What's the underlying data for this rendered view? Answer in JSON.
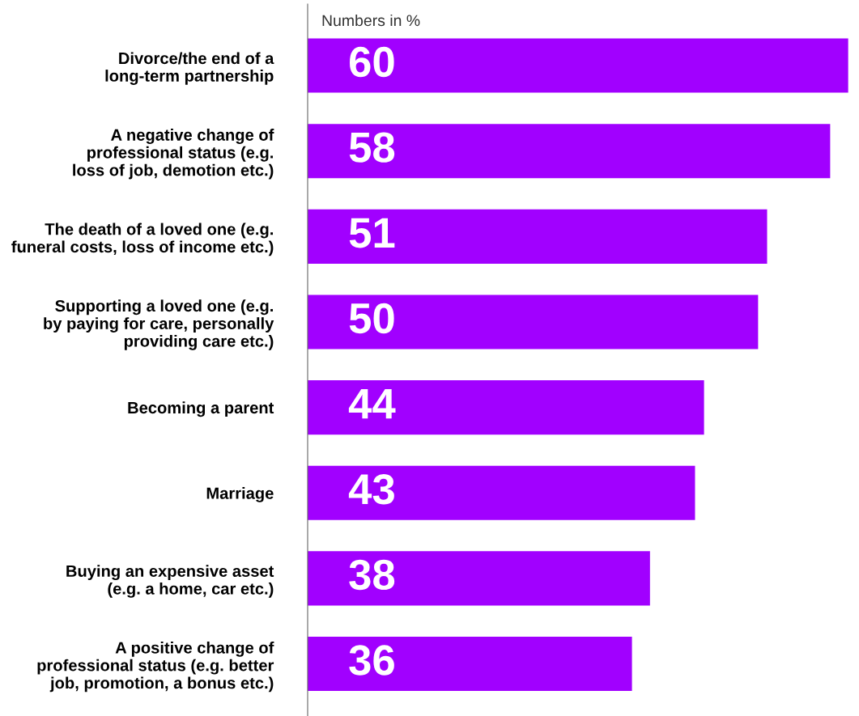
{
  "chart_data": {
    "type": "bar",
    "orientation": "horizontal",
    "subtitle": "Numbers in %",
    "categories": [
      "Divorce/the end of a\nlong-term partnership",
      "A negative change of\nprofessional status (e.g.\nloss of job, demotion etc.)",
      "The death of a loved one (e.g.\nfuneral costs, loss of income etc.)",
      "Supporting a loved one (e.g.\nby paying for care, personally\nproviding care etc.)",
      "Becoming a parent",
      "Marriage",
      "Buying an expensive asset\n(e.g. a home, car etc.)",
      "A positive change of\nprofessional status (e.g. better\njob, promotion, a bonus etc.)"
    ],
    "values": [
      60,
      58,
      51,
      50,
      44,
      43,
      38,
      36
    ],
    "color": "#a100ff",
    "data_labels": true,
    "grid": false,
    "legend": false,
    "tick_labels": "y"
  }
}
